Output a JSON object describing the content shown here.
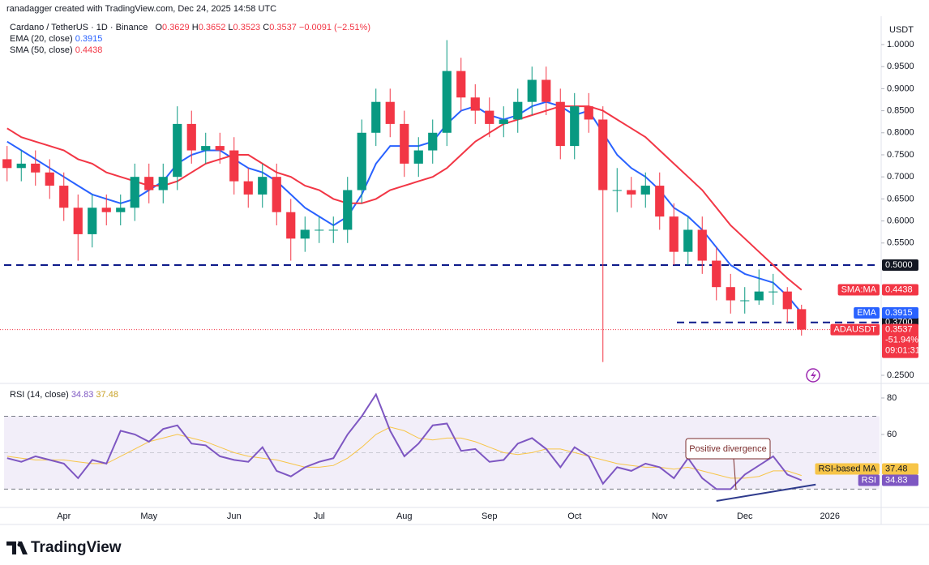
{
  "header": {
    "attribution": "ranadagger created with TradingView.com, Dec 24, 2025 14:58 UTC",
    "symbol": "Cardano / TetherUS · 1D · Binance",
    "ohlc": [
      {
        "key": "O",
        "value": "0.3629"
      },
      {
        "key": "H",
        "value": "0.3652"
      },
      {
        "key": "L",
        "value": "0.3523"
      },
      {
        "key": "C",
        "value": "0.3537"
      }
    ],
    "change": "−0.0091 (−2.51%)",
    "currency": "USDT"
  },
  "chart_data": [
    {
      "type": "candlestick",
      "categories": [
        null,
        null,
        null,
        null,
        "Apr",
        null,
        null,
        null,
        null,
        null,
        "May",
        null,
        null,
        null,
        null,
        null,
        "Jun",
        null,
        null,
        null,
        null,
        null,
        "Jul",
        null,
        null,
        null,
        null,
        null,
        "Aug",
        null,
        null,
        null,
        null,
        null,
        "Sep",
        null,
        null,
        null,
        null,
        null,
        "Oct",
        null,
        null,
        null,
        null,
        null,
        "Nov",
        null,
        null,
        null,
        null,
        null,
        "Dec",
        null,
        null,
        null,
        null,
        null,
        "2026",
        null,
        null,
        null
      ],
      "open": [
        0.74,
        0.72,
        0.73,
        0.71,
        0.68,
        0.63,
        0.57,
        0.63,
        0.62,
        0.63,
        0.7,
        0.67,
        0.7,
        0.82,
        0.76,
        0.77,
        0.76,
        0.69,
        0.66,
        0.7,
        0.62,
        0.56,
        0.58,
        0.58,
        0.58,
        0.67,
        0.8,
        0.87,
        0.82,
        0.73,
        0.76,
        0.8,
        0.94,
        0.88,
        0.85,
        0.82,
        0.83,
        0.87,
        0.92,
        0.87,
        0.77,
        0.86,
        0.83,
        0.67,
        0.67,
        0.66,
        0.68,
        0.61,
        0.53,
        0.58,
        0.51,
        0.45,
        0.42,
        0.42,
        0.44,
        0.44,
        0.4,
        null,
        null,
        null,
        null,
        null
      ],
      "high": [
        0.77,
        0.76,
        0.76,
        0.74,
        0.71,
        0.66,
        0.66,
        0.66,
        0.66,
        0.73,
        0.73,
        0.73,
        0.86,
        0.85,
        0.8,
        0.8,
        0.79,
        0.72,
        0.73,
        0.73,
        0.65,
        0.61,
        0.61,
        0.61,
        0.7,
        0.83,
        0.9,
        0.9,
        0.85,
        0.79,
        0.83,
        1.01,
        0.97,
        0.91,
        0.88,
        0.86,
        0.9,
        0.95,
        0.95,
        0.9,
        0.89,
        0.89,
        0.86,
        0.72,
        0.7,
        0.71,
        0.71,
        0.64,
        0.61,
        0.61,
        0.54,
        0.48,
        0.45,
        0.49,
        0.48,
        0.45,
        0.41,
        null,
        null,
        null,
        null,
        null
      ],
      "low": [
        0.69,
        0.69,
        0.68,
        0.65,
        0.6,
        0.51,
        0.54,
        0.59,
        0.59,
        0.6,
        0.64,
        0.64,
        0.67,
        0.73,
        0.73,
        0.73,
        0.66,
        0.63,
        0.63,
        0.59,
        0.51,
        0.53,
        0.55,
        0.55,
        0.55,
        0.64,
        0.77,
        0.79,
        0.7,
        0.7,
        0.73,
        0.77,
        0.85,
        0.82,
        0.79,
        0.79,
        0.8,
        0.84,
        0.84,
        0.74,
        0.74,
        0.8,
        0.28,
        0.62,
        0.63,
        0.63,
        0.58,
        0.5,
        0.5,
        0.48,
        0.42,
        0.39,
        0.39,
        0.41,
        0.41,
        0.37,
        0.34,
        null,
        null,
        null,
        null,
        null
      ],
      "close": [
        0.72,
        0.73,
        0.71,
        0.68,
        0.63,
        0.57,
        0.63,
        0.62,
        0.63,
        0.7,
        0.67,
        0.7,
        0.82,
        0.76,
        0.77,
        0.76,
        0.69,
        0.66,
        0.7,
        0.62,
        0.56,
        0.58,
        0.58,
        0.58,
        0.67,
        0.8,
        0.87,
        0.82,
        0.73,
        0.76,
        0.8,
        0.94,
        0.88,
        0.85,
        0.82,
        0.83,
        0.87,
        0.92,
        0.87,
        0.77,
        0.86,
        0.83,
        0.67,
        0.67,
        0.66,
        0.68,
        0.61,
        0.53,
        0.58,
        0.51,
        0.45,
        0.42,
        0.42,
        0.44,
        0.44,
        0.4,
        0.3537,
        null,
        null,
        null,
        null,
        null
      ],
      "up_color": "#089981",
      "down_color": "#f23645",
      "ylim": [
        0.2316,
        1.0643
      ],
      "yticks": [
        {
          "value": 0.25,
          "label": "0.2500"
        },
        {
          "value": 0.55,
          "label": "0.5500"
        },
        {
          "value": 0.6,
          "label": "0.6000"
        },
        {
          "value": 0.65,
          "label": "0.6500"
        },
        {
          "value": 0.7,
          "label": "0.7000"
        },
        {
          "value": 0.75,
          "label": "0.7500"
        },
        {
          "value": 0.8,
          "label": "0.8000"
        },
        {
          "value": 0.85,
          "label": "0.8500"
        },
        {
          "value": 0.9,
          "label": "0.9000"
        },
        {
          "value": 0.95,
          "label": "0.9500"
        },
        {
          "value": 1.0,
          "label": "1.0000"
        }
      ],
      "grid": false,
      "series": [
        {
          "name": "EMA (20, close)",
          "short": "EMA",
          "color": "#2962ff",
          "last_label": "0.3915",
          "values": [
            0.78,
            0.76,
            0.74,
            0.72,
            0.7,
            0.68,
            0.66,
            0.65,
            0.64,
            0.65,
            0.67,
            0.69,
            0.73,
            0.75,
            0.76,
            0.76,
            0.74,
            0.72,
            0.71,
            0.69,
            0.66,
            0.63,
            0.61,
            0.59,
            0.61,
            0.66,
            0.73,
            0.77,
            0.77,
            0.77,
            0.78,
            0.82,
            0.85,
            0.86,
            0.84,
            0.83,
            0.84,
            0.86,
            0.87,
            0.86,
            0.84,
            0.85,
            0.8,
            0.75,
            0.72,
            0.7,
            0.67,
            0.63,
            0.61,
            0.58,
            0.54,
            0.5,
            0.48,
            0.47,
            0.46,
            0.43,
            0.3915,
            null,
            null,
            null,
            null,
            null
          ]
        },
        {
          "name": "SMA (50, close)",
          "short": "SMA:MA",
          "color": "#f23645",
          "last_label": "0.4438",
          "values": [
            0.81,
            0.79,
            0.78,
            0.77,
            0.76,
            0.74,
            0.73,
            0.71,
            0.7,
            0.69,
            0.68,
            0.68,
            0.69,
            0.71,
            0.73,
            0.74,
            0.75,
            0.75,
            0.73,
            0.71,
            0.7,
            0.68,
            0.67,
            0.65,
            0.64,
            0.64,
            0.65,
            0.67,
            0.68,
            0.69,
            0.7,
            0.72,
            0.75,
            0.78,
            0.8,
            0.82,
            0.83,
            0.84,
            0.85,
            0.86,
            0.86,
            0.86,
            0.85,
            0.83,
            0.81,
            0.79,
            0.76,
            0.73,
            0.7,
            0.67,
            0.63,
            0.59,
            0.56,
            0.53,
            0.5,
            0.47,
            0.4438,
            null,
            null,
            null,
            null,
            null
          ]
        }
      ],
      "levels": [
        {
          "value": 0.5,
          "label": "0.5000"
        },
        {
          "value": 0.37,
          "label": "0.3700"
        }
      ],
      "last_price": {
        "name": "ADAUSDT",
        "label": "0.3537",
        "change": "-51.94%",
        "countdown": "09:01:31"
      }
    },
    {
      "type": "line",
      "title": "RSI (14, close)",
      "ylim": [
        20.4,
        87.1
      ],
      "yticks": [
        60,
        80
      ],
      "band": [
        30,
        70
      ],
      "midline": 50,
      "series": [
        {
          "name": "RSI",
          "color": "#7e57c2",
          "last_label": "34.83",
          "values": [
            47,
            45,
            48,
            46,
            44,
            36,
            46,
            44,
            62,
            60,
            56,
            63,
            65,
            55,
            54,
            48,
            46,
            45,
            53,
            40,
            37,
            42,
            45,
            47,
            60,
            70,
            82,
            62,
            48,
            55,
            65,
            66,
            51,
            52,
            45,
            46,
            55,
            58,
            52,
            42,
            53,
            48,
            33,
            42,
            40,
            44,
            42,
            36,
            47,
            36,
            30,
            30,
            38,
            43,
            48,
            38,
            34.83,
            null,
            null,
            null,
            null,
            null
          ]
        },
        {
          "name": "RSI-based MA",
          "color": "#f7c548",
          "last_label": "37.48",
          "values": [
            48,
            47,
            46,
            46,
            46,
            45,
            44,
            44,
            48,
            52,
            56,
            58,
            60,
            58,
            56,
            53,
            50,
            48,
            47,
            46,
            44,
            42,
            42,
            43,
            47,
            53,
            60,
            64,
            62,
            58,
            57,
            58,
            58,
            56,
            53,
            50,
            49,
            50,
            52,
            52,
            50,
            48,
            46,
            44,
            43,
            42,
            42,
            41,
            42,
            40,
            38,
            36,
            36,
            37,
            40,
            40,
            37.48,
            null,
            null,
            null,
            null,
            null
          ]
        }
      ],
      "annotation": "Positive divergence",
      "trendline": {
        "x": [
          50,
          57
        ],
        "y": [
          23.5,
          32.5
        ]
      }
    }
  ],
  "footer": {
    "brand": "TradingView"
  }
}
